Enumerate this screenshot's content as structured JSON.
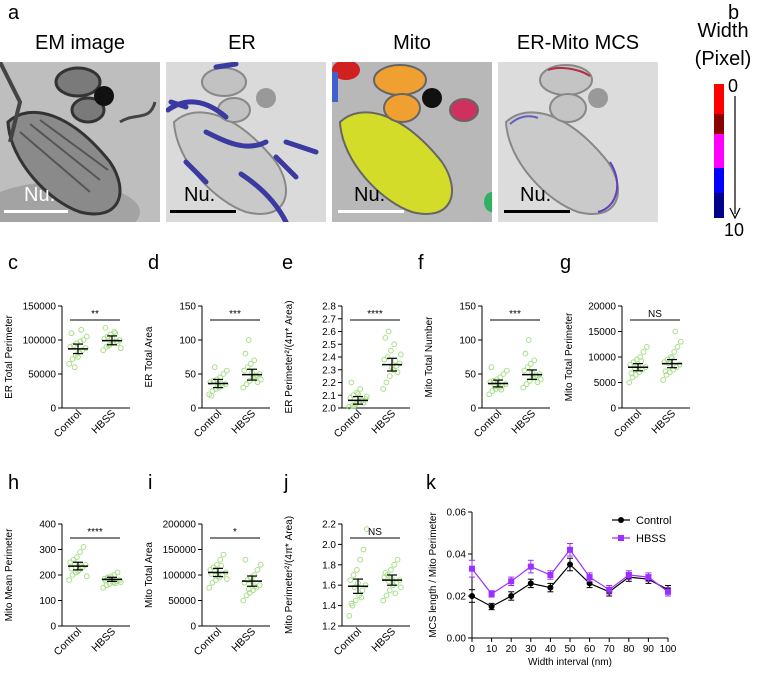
{
  "panel_letters": {
    "a": "a",
    "b": "b",
    "c": "c",
    "d": "d",
    "e": "e",
    "f": "f",
    "g": "g",
    "h": "h",
    "i": "i",
    "j": "j",
    "k": "k"
  },
  "em_panels": [
    {
      "label": "EM image",
      "nu": "Nu."
    },
    {
      "label": "ER",
      "nu": "Nu."
    },
    {
      "label": "Mito",
      "nu": "Nu."
    },
    {
      "label": "ER-Mito MCS",
      "nu": "Nu."
    }
  ],
  "colorbar": {
    "title_line1": "Width",
    "title_line2": "(Pixel)",
    "min_label": "0",
    "max_label": "10",
    "colors": [
      "#ff0000",
      "#8b0000",
      "#ff00ff",
      "#0000ff",
      "#00008b"
    ]
  },
  "colors": {
    "control": "#000000",
    "hbss": "#9b30ff",
    "dots": "#a8e08a",
    "ci_fill": "#7cc86a"
  },
  "chart_data": [
    {
      "id": "c",
      "type": "scatter",
      "ylabel": "ER Total Perimeter",
      "categories": [
        "Control",
        "HBSS"
      ],
      "ylim": [
        0,
        150000
      ],
      "yticks": [
        "0",
        "50000",
        "100000",
        "150000"
      ],
      "ytick_values": [
        0,
        50000,
        100000,
        150000
      ],
      "means": [
        87000,
        99000
      ],
      "ci": [
        [
          80000,
          94000
        ],
        [
          93000,
          106000
        ]
      ],
      "significance": "**",
      "points": [
        [
          65000,
          72000,
          78000,
          82000,
          85000,
          88000,
          90000,
          92000,
          95000,
          98000,
          100000,
          105000,
          110000,
          60000,
          75000,
          115000
        ],
        [
          85000,
          90000,
          93000,
          96000,
          98000,
          100000,
          102000,
          105000,
          108000,
          112000,
          95000,
          88000,
          118000,
          92000,
          103000,
          110000
        ]
      ]
    },
    {
      "id": "d",
      "type": "scatter",
      "ylabel": "ER Total Area",
      "categories": [
        "Control",
        "HBSS"
      ],
      "ylim": [
        0,
        150
      ],
      "yticks": [
        "0",
        "50",
        "100",
        "150"
      ],
      "ytick_values": [
        0,
        50,
        100,
        150
      ],
      "means": [
        36,
        49
      ],
      "ci": [
        [
          30,
          42
        ],
        [
          41,
          57
        ]
      ],
      "significance": "***",
      "points": [
        [
          20,
          25,
          28,
          30,
          33,
          35,
          38,
          40,
          42,
          45,
          50,
          55,
          18,
          60,
          32,
          36
        ],
        [
          30,
          35,
          40,
          45,
          48,
          50,
          55,
          60,
          65,
          70,
          38,
          42,
          80,
          100,
          52,
          46
        ]
      ]
    },
    {
      "id": "e",
      "type": "scatter",
      "ylabel": "ER Perimeter²/(4π* Area)",
      "categories": [
        "Control",
        "HBSS"
      ],
      "ylim": [
        2.0,
        2.8
      ],
      "yticks": [
        "2.0",
        "2.1",
        "2.2",
        "2.3",
        "2.4",
        "2.5",
        "2.6",
        "2.7",
        "2.8"
      ],
      "ytick_values": [
        2.0,
        2.1,
        2.2,
        2.3,
        2.4,
        2.5,
        2.6,
        2.7,
        2.8
      ],
      "means": [
        2.06,
        2.34
      ],
      "ci": [
        [
          2.03,
          2.09
        ],
        [
          2.29,
          2.39
        ]
      ],
      "significance": "****",
      "points": [
        [
          2.01,
          2.02,
          2.03,
          2.05,
          2.06,
          2.07,
          2.08,
          2.1,
          2.12,
          2.15,
          2.04,
          2.09,
          2.2,
          2.02,
          2.11,
          2.06
        ],
        [
          2.15,
          2.2,
          2.25,
          2.3,
          2.33,
          2.35,
          2.38,
          2.4,
          2.45,
          2.5,
          2.28,
          2.42,
          2.55,
          2.6,
          2.32,
          2.37
        ]
      ]
    },
    {
      "id": "f",
      "type": "scatter",
      "ylabel": "Mito Total Number",
      "categories": [
        "Control",
        "HBSS"
      ],
      "ylim": [
        0,
        150
      ],
      "yticks": [
        "0",
        "50",
        "100",
        "150"
      ],
      "ytick_values": [
        0,
        50,
        100,
        150
      ],
      "means": [
        36,
        49
      ],
      "ci": [
        [
          31,
          41
        ],
        [
          42,
          56
        ]
      ],
      "significance": "***",
      "points": [
        [
          20,
          25,
          28,
          30,
          33,
          35,
          38,
          40,
          42,
          45,
          50,
          55,
          60,
          32,
          36,
          27
        ],
        [
          30,
          35,
          40,
          45,
          48,
          50,
          55,
          60,
          65,
          70,
          38,
          42,
          80,
          100,
          52,
          46
        ]
      ]
    },
    {
      "id": "g",
      "type": "scatter",
      "ylabel": "Mito Total Perimeter",
      "categories": [
        "Control",
        "HBSS"
      ],
      "ylim": [
        0,
        20000
      ],
      "yticks": [
        "0",
        "5000",
        "10000",
        "15000",
        "20000"
      ],
      "ytick_values": [
        0,
        5000,
        10000,
        15000,
        20000
      ],
      "means": [
        8000,
        8700
      ],
      "ci": [
        [
          7300,
          8700
        ],
        [
          7900,
          9500
        ]
      ],
      "significance": "NS",
      "points": [
        [
          5000,
          6000,
          6500,
          7000,
          7500,
          8000,
          8500,
          9000,
          9500,
          10000,
          11000,
          12000,
          6800,
          7800,
          8200,
          9200
        ],
        [
          5500,
          6500,
          7000,
          7500,
          8000,
          8500,
          9000,
          9500,
          10000,
          11000,
          12000,
          13000,
          7200,
          8800,
          9800,
          15000
        ]
      ]
    },
    {
      "id": "h",
      "type": "scatter",
      "ylabel": "Mito Mean Perimeter",
      "categories": [
        "Control",
        "HBSS"
      ],
      "ylim": [
        0,
        400
      ],
      "yticks": [
        "0",
        "100",
        "200",
        "300",
        "400"
      ],
      "ytick_values": [
        0,
        100,
        200,
        300,
        400
      ],
      "means": [
        235,
        183
      ],
      "ci": [
        [
          220,
          250
        ],
        [
          175,
          191
        ]
      ],
      "significance": "****",
      "points": [
        [
          180,
          200,
          210,
          220,
          230,
          240,
          250,
          260,
          270,
          290,
          310,
          195,
          225,
          245,
          215,
          235
        ],
        [
          150,
          160,
          165,
          170,
          175,
          180,
          185,
          190,
          195,
          200,
          210,
          172,
          178,
          188,
          182,
          168
        ]
      ]
    },
    {
      "id": "i",
      "type": "scatter",
      "ylabel": "Mito Total Area",
      "categories": [
        "Control",
        "HBSS"
      ],
      "ylim": [
        0,
        200000
      ],
      "yticks": [
        "0",
        "50000",
        "100000",
        "150000",
        "200000"
      ],
      "ytick_values": [
        0,
        50000,
        100000,
        150000,
        200000
      ],
      "means": [
        105000,
        88000
      ],
      "ci": [
        [
          97000,
          113000
        ],
        [
          78000,
          98000
        ]
      ],
      "significance": "*",
      "points": [
        [
          75000,
          85000,
          90000,
          95000,
          100000,
          105000,
          110000,
          115000,
          120000,
          130000,
          140000,
          92000,
          102000,
          108000,
          98000,
          118000
        ],
        [
          50000,
          60000,
          65000,
          70000,
          75000,
          80000,
          85000,
          90000,
          95000,
          100000,
          110000,
          120000,
          130000,
          72000,
          88000,
          78000
        ]
      ]
    },
    {
      "id": "j",
      "type": "scatter",
      "ylabel": "Mito Perimeter²/(4π* Area)",
      "categories": [
        "Control",
        "HBSS"
      ],
      "ylim": [
        1.2,
        2.2
      ],
      "yticks": [
        "1.2",
        "1.4",
        "1.6",
        "1.8",
        "2.0",
        "2.2"
      ],
      "ytick_values": [
        1.2,
        1.4,
        1.6,
        1.8,
        2.0,
        2.2
      ],
      "means": [
        1.59,
        1.65
      ],
      "ci": [
        [
          1.52,
          1.66
        ],
        [
          1.6,
          1.7
        ]
      ],
      "significance": "NS",
      "points": [
        [
          1.3,
          1.4,
          1.45,
          1.5,
          1.55,
          1.6,
          1.65,
          1.7,
          1.75,
          1.85,
          1.95,
          2.15,
          1.42,
          1.58,
          1.62,
          1.48
        ],
        [
          1.45,
          1.5,
          1.55,
          1.6,
          1.62,
          1.65,
          1.68,
          1.7,
          1.75,
          1.8,
          1.85,
          1.58,
          1.72,
          1.64,
          1.66,
          1.52
        ]
      ]
    },
    {
      "id": "k",
      "type": "line",
      "ylabel": "MCS length / Mito Perimeter",
      "xlabel": "Width interval (nm)",
      "x": [
        0,
        10,
        20,
        30,
        40,
        50,
        60,
        70,
        80,
        90,
        100
      ],
      "xticks": [
        "0",
        "10",
        "20",
        "30",
        "40",
        "50",
        "60",
        "70",
        "80",
        "90",
        "100"
      ],
      "ylim": [
        0,
        0.06
      ],
      "yticks": [
        "0.00",
        "0.02",
        "0.04",
        "0.06"
      ],
      "ytick_values": [
        0,
        0.02,
        0.04,
        0.06
      ],
      "series": [
        {
          "name": "Control",
          "values": [
            0.02,
            0.015,
            0.02,
            0.026,
            0.024,
            0.035,
            0.026,
            0.022,
            0.029,
            0.028,
            0.023
          ],
          "err": [
            0.003,
            0.0015,
            0.002,
            0.002,
            0.002,
            0.003,
            0.002,
            0.002,
            0.002,
            0.002,
            0.002
          ]
        },
        {
          "name": "HBSS",
          "values": [
            0.033,
            0.021,
            0.027,
            0.034,
            0.03,
            0.042,
            0.029,
            0.023,
            0.03,
            0.029,
            0.022
          ],
          "err": [
            0.004,
            0.0015,
            0.002,
            0.003,
            0.002,
            0.003,
            0.002,
            0.002,
            0.002,
            0.002,
            0.002
          ]
        }
      ]
    }
  ]
}
